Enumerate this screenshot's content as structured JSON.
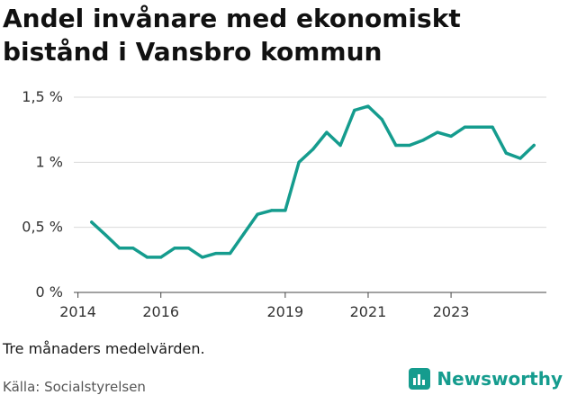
{
  "title": "Andel invånare med ekonomiskt bistånd i Vansbro kommun",
  "note": "Tre månaders medelvärden.",
  "source": "Källa: Socialstyrelsen",
  "brand": {
    "name": "Newsworthy",
    "color": "#159c8e",
    "icon": "bar-chart-logo-icon"
  },
  "chart_data": {
    "type": "line",
    "title": "Andel invånare med ekonomiskt bistånd i Vansbro kommun",
    "xlabel": "",
    "ylabel": "",
    "ylim": [
      0,
      1.5
    ],
    "xlim": [
      2013.9,
      2025.3
    ],
    "yticks": [
      0,
      0.5,
      1,
      1.5
    ],
    "ytick_labels": [
      "0 %",
      "0,5 %",
      "1 %",
      "1,5 %"
    ],
    "xticks": [
      2014,
      2016,
      2019,
      2021,
      2023
    ],
    "xtick_labels": [
      "2014",
      "2016",
      "2019",
      "2021",
      "2023"
    ],
    "grid": true,
    "legend": "none",
    "series": [
      {
        "color": "#159c8e",
        "x": [
          2014.33,
          2014.67,
          2015.0,
          2015.33,
          2015.67,
          2016.0,
          2016.33,
          2016.67,
          2017.0,
          2017.33,
          2017.67,
          2018.0,
          2018.33,
          2018.67,
          2019.0,
          2019.33,
          2019.67,
          2020.0,
          2020.33,
          2020.67,
          2021.0,
          2021.33,
          2021.67,
          2022.0,
          2022.33,
          2022.67,
          2023.0,
          2023.33,
          2023.67,
          2024.0,
          2024.33,
          2024.67,
          2025.0
        ],
        "values": [
          0.54,
          0.44,
          0.34,
          0.34,
          0.27,
          0.27,
          0.34,
          0.34,
          0.27,
          0.3,
          0.3,
          0.45,
          0.6,
          0.63,
          0.63,
          1.0,
          1.1,
          1.23,
          1.13,
          1.4,
          1.43,
          1.33,
          1.13,
          1.13,
          1.17,
          1.23,
          1.2,
          1.27,
          1.27,
          1.27,
          1.07,
          1.03,
          1.13
        ]
      }
    ]
  }
}
